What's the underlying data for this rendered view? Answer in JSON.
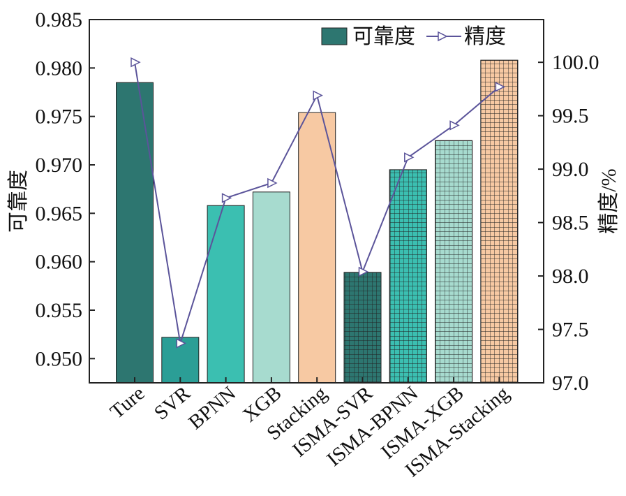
{
  "chart_data": {
    "type": "bar+line",
    "categories": [
      "Ture",
      "SVR",
      "BPNN",
      "XGB",
      "Stacking",
      "ISMA-SVR",
      "ISMA-BPNN",
      "ISMA-XGB",
      "ISMA-Stacking"
    ],
    "bar_series": {
      "name": "可靠度",
      "values": [
        0.9785,
        0.9522,
        0.9658,
        0.9672,
        0.9754,
        0.9589,
        0.9695,
        0.9725,
        0.9808
      ],
      "colors": [
        "#2d7670",
        "#2b9e96",
        "#3bbfb1",
        "#a7dbcf",
        "#f7c9a3",
        "#2d7670",
        "#3bbfb1",
        "#a7dbcf",
        "#f7c9a3"
      ],
      "hatched": [
        false,
        false,
        false,
        false,
        false,
        true,
        true,
        true,
        true
      ]
    },
    "line_series": {
      "name": "精度",
      "values": [
        100.0,
        97.37,
        98.73,
        98.87,
        99.69,
        98.04,
        99.11,
        99.41,
        99.77
      ],
      "color": "#5b549a",
      "marker": "right-triangle"
    },
    "left_axis": {
      "label": "可靠度",
      "range": [
        0.9475,
        0.985
      ],
      "ticks": [
        "0.950",
        "0.955",
        "0.960",
        "0.965",
        "0.970",
        "0.975",
        "0.980",
        "0.985"
      ]
    },
    "right_axis": {
      "label": "精度/%",
      "range": [
        97.0,
        100.4
      ],
      "ticks": [
        "97.0",
        "97.5",
        "98.0",
        "98.5",
        "99.0",
        "99.5",
        "100.0"
      ]
    },
    "legend": {
      "bar_label": "可靠度",
      "line_label": "精度",
      "placement": "top-right"
    }
  }
}
